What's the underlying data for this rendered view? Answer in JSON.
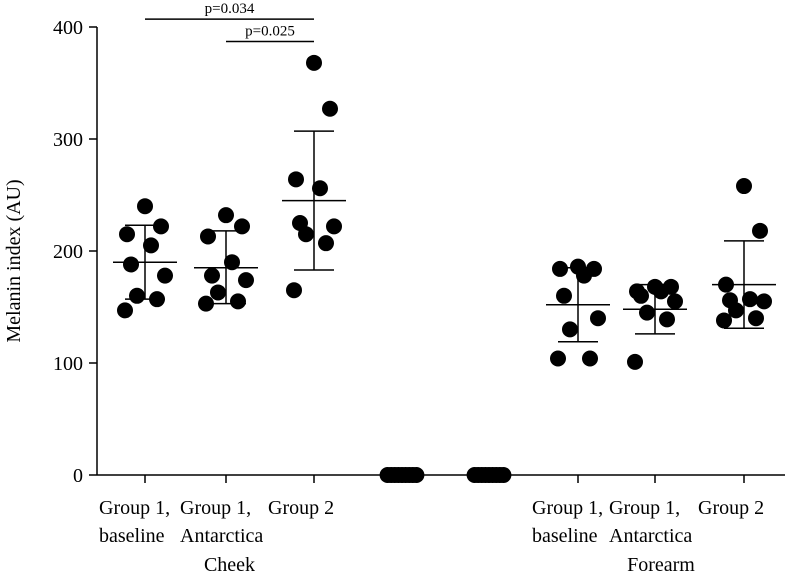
{
  "chart_data": {
    "type": "scatter",
    "ylabel": "Melanin index (AU)",
    "ylim": [
      0,
      400
    ],
    "yticks": [
      0,
      100,
      200,
      300,
      400
    ],
    "colors": {
      "points": "#000000",
      "axes": "#000000"
    },
    "groups": [
      {
        "label_line1": "Group 1,",
        "label_line2": "baseline",
        "region": "Cheek",
        "mean": 190,
        "sd_low": 157,
        "sd_high": 223,
        "values": [
          147,
          157,
          160,
          178,
          188,
          205,
          215,
          222,
          240
        ]
      },
      {
        "label_line1": "Group 1,",
        "label_line2": "Antarctica",
        "region": "Cheek",
        "mean": 185,
        "sd_low": 153,
        "sd_high": 218,
        "values": [
          153,
          155,
          163,
          174,
          178,
          190,
          213,
          222,
          232
        ]
      },
      {
        "label_line1": "Group 2",
        "label_line2": "",
        "region": "Cheek",
        "mean": 245,
        "sd_low": 183,
        "sd_high": 307,
        "values": [
          165,
          207,
          215,
          222,
          225,
          256,
          264,
          327,
          368
        ]
      },
      {
        "label_line1": "",
        "label_line2": "",
        "region": "",
        "mean": 0,
        "sd_low": 0,
        "sd_high": 0,
        "values": [
          0,
          0,
          0,
          0,
          0,
          0,
          0,
          0,
          0
        ]
      },
      {
        "label_line1": "",
        "label_line2": "",
        "region": "",
        "mean": 0,
        "sd_low": 0,
        "sd_high": 0,
        "values": [
          0,
          0,
          0,
          0,
          0,
          0,
          0,
          0,
          0
        ]
      },
      {
        "label_line1": "Group 1,",
        "label_line2": "baseline",
        "region": "Forearm",
        "mean": 152,
        "sd_low": 119,
        "sd_high": 185,
        "values": [
          104,
          104,
          130,
          140,
          160,
          178,
          184,
          184,
          186
        ]
      },
      {
        "label_line1": "Group 1,",
        "label_line2": "Antarctica",
        "region": "Forearm",
        "mean": 148,
        "sd_low": 126,
        "sd_high": 170,
        "values": [
          101,
          139,
          145,
          155,
          160,
          164,
          164,
          168,
          168
        ]
      },
      {
        "label_line1": "Group 2",
        "label_line2": "",
        "region": "Forearm",
        "mean": 170,
        "sd_low": 131,
        "sd_high": 209,
        "values": [
          138,
          140,
          147,
          155,
          156,
          157,
          170,
          218,
          258
        ]
      }
    ],
    "regions": [
      "Cheek",
      "Forearm"
    ],
    "annotations": [
      {
        "text": "p=0.034",
        "from_group": 0,
        "to_group": 2,
        "y": 407
      },
      {
        "text": "p=0.025",
        "from_group": 1,
        "to_group": 2,
        "y": 387
      }
    ]
  }
}
